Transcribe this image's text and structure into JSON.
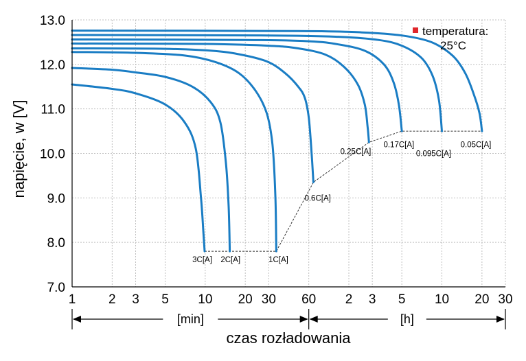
{
  "chart_data": {
    "type": "line",
    "title": "",
    "xlabel": "czas rozładowania",
    "ylabel": "napięcie, w [V]",
    "ylim": [
      7.0,
      13.0
    ],
    "y_ticks": [
      "7.0",
      "8.0",
      "9.0",
      "10.0",
      "11.0",
      "12.0",
      "13.0"
    ],
    "x_scale": "log",
    "x_unit": "min",
    "xlim": [
      1,
      1800
    ],
    "x_ticks": [
      {
        "label": "1",
        "min": 1
      },
      {
        "label": "2",
        "min": 2
      },
      {
        "label": "3",
        "min": 3
      },
      {
        "label": "5",
        "min": 5
      },
      {
        "label": "10",
        "min": 10
      },
      {
        "label": "20",
        "min": 20
      },
      {
        "label": "30",
        "min": 30
      },
      {
        "label": "60",
        "min": 60
      },
      {
        "label": "2",
        "min": 120
      },
      {
        "label": "3",
        "min": 180
      },
      {
        "label": "5",
        "min": 300
      },
      {
        "label": "10",
        "min": 600
      },
      {
        "label": "20",
        "min": 1200
      },
      {
        "label": "30",
        "min": 1800
      }
    ],
    "time_ranges": [
      {
        "label": "[min]",
        "from": 1,
        "to": 60
      },
      {
        "label": "[h]",
        "from": 60,
        "to": 1800
      }
    ],
    "legend": {
      "marker_color": "#e0262b",
      "line1": "temperatura:",
      "line2": "25°C"
    },
    "series_color": "#1a7dc4",
    "series": [
      {
        "name": "3C[A]",
        "label_at": [
          9.5,
          7.62
        ],
        "points": [
          [
            1,
            11.55
          ],
          [
            2,
            11.45
          ],
          [
            3,
            11.35
          ],
          [
            5,
            11.1
          ],
          [
            7,
            10.7
          ],
          [
            8.5,
            10.1
          ],
          [
            9.3,
            9.0
          ],
          [
            9.7,
            8.2
          ],
          [
            9.9,
            7.8
          ]
        ]
      },
      {
        "name": "2C[A]",
        "label_at": [
          15.5,
          7.62
        ],
        "points": [
          [
            1,
            11.92
          ],
          [
            2,
            11.88
          ],
          [
            3,
            11.82
          ],
          [
            5,
            11.72
          ],
          [
            8,
            11.5
          ],
          [
            11,
            11.15
          ],
          [
            13,
            10.7
          ],
          [
            14.3,
            9.8
          ],
          [
            15,
            8.8
          ],
          [
            15.3,
            7.8
          ]
        ]
      },
      {
        "name": "1C[A]",
        "label_at": [
          35.5,
          7.62
        ],
        "points": [
          [
            1,
            12.28
          ],
          [
            3,
            12.26
          ],
          [
            7,
            12.2
          ],
          [
            12,
            12.05
          ],
          [
            18,
            11.8
          ],
          [
            24,
            11.4
          ],
          [
            29,
            10.9
          ],
          [
            32,
            10.2
          ],
          [
            33.7,
            9.0
          ],
          [
            34.2,
            7.8
          ]
        ]
      },
      {
        "name": "0.6C[A]",
        "label_at": [
          70,
          9.0
        ],
        "points": [
          [
            1,
            12.36
          ],
          [
            5,
            12.35
          ],
          [
            12,
            12.3
          ],
          [
            20,
            12.2
          ],
          [
            30,
            12.05
          ],
          [
            40,
            11.8
          ],
          [
            50,
            11.5
          ],
          [
            56,
            11.25
          ],
          [
            60,
            10.8
          ],
          [
            63,
            10.0
          ],
          [
            65,
            9.35
          ]
        ]
      },
      {
        "name": "0.25C[A]",
        "label_at": [
          135,
          10.05
        ],
        "points": [
          [
            1,
            12.47
          ],
          [
            10,
            12.46
          ],
          [
            30,
            12.42
          ],
          [
            50,
            12.36
          ],
          [
            80,
            12.22
          ],
          [
            110,
            11.95
          ],
          [
            140,
            11.55
          ],
          [
            158,
            11.1
          ],
          [
            166,
            10.6
          ],
          [
            170,
            10.25
          ]
        ]
      },
      {
        "name": "0.17C[A]",
        "label_at": [
          285,
          10.2
        ],
        "points": [
          [
            1,
            12.56
          ],
          [
            20,
            12.55
          ],
          [
            60,
            12.52
          ],
          [
            100,
            12.45
          ],
          [
            160,
            12.3
          ],
          [
            220,
            12.0
          ],
          [
            260,
            11.6
          ],
          [
            285,
            11.1
          ],
          [
            300,
            10.5
          ]
        ]
      },
      {
        "name": "0.095C[A]",
        "label_at": [
          520,
          10.0
        ],
        "points": [
          [
            1,
            12.66
          ],
          [
            30,
            12.65
          ],
          [
            100,
            12.62
          ],
          [
            200,
            12.55
          ],
          [
            300,
            12.42
          ],
          [
            420,
            12.15
          ],
          [
            510,
            11.75
          ],
          [
            570,
            11.2
          ],
          [
            600,
            10.5
          ]
        ]
      },
      {
        "name": "0.05C[A]",
        "label_at": [
          1080,
          10.2
        ],
        "points": [
          [
            1,
            12.76
          ],
          [
            50,
            12.75
          ],
          [
            150,
            12.72
          ],
          [
            300,
            12.65
          ],
          [
            500,
            12.5
          ],
          [
            720,
            12.2
          ],
          [
            900,
            11.8
          ],
          [
            1050,
            11.3
          ],
          [
            1150,
            10.9
          ],
          [
            1200,
            10.5
          ]
        ]
      }
    ],
    "end_voltage_line": [
      [
        9.9,
        7.8
      ],
      [
        34.2,
        7.8
      ],
      [
        65,
        9.35
      ],
      [
        170,
        10.25
      ],
      [
        300,
        10.5
      ],
      [
        1200,
        10.5
      ]
    ]
  }
}
